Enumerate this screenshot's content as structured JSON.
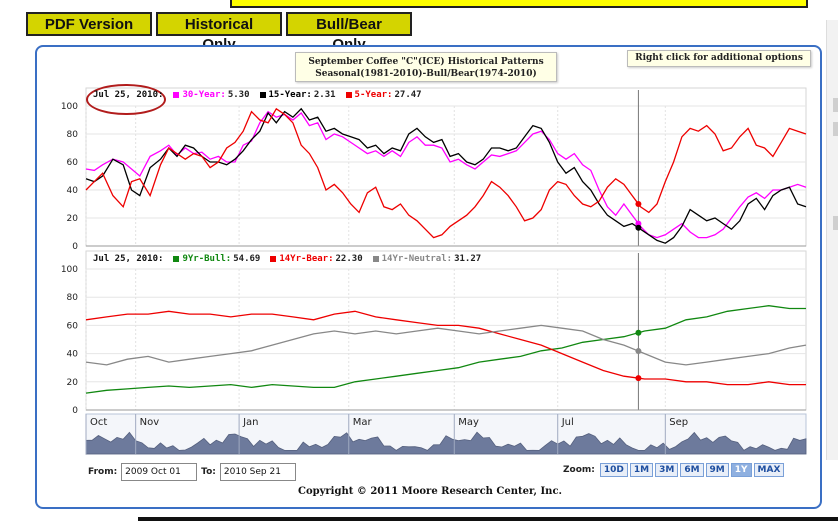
{
  "tabs": [
    "PDF Version",
    "Historical Only",
    "Bull/Bear Only"
  ],
  "title": {
    "line1": "September Coffee \"C\"(ICE) Historical Patterns",
    "line2": "Seasonal(1981-2010)-Bull/Bear(1974-2010)"
  },
  "right_click_note": "Right click for additional options",
  "colors": {
    "magenta": "#ff00ff",
    "black": "#000000",
    "red": "#ee0000",
    "green": "#118811",
    "gray": "#888888",
    "navigator_fill": "#6d7a9c",
    "border_blue": "#3a6fc4",
    "tab_yellow": "#d4d400"
  },
  "chart_data": [
    {
      "type": "line",
      "title": "September Coffee \"C\"(ICE) Historical Patterns",
      "cursor_date": "Jul 25, 2010:",
      "ylim": [
        0,
        100
      ],
      "yticks": [
        0,
        20,
        40,
        60,
        80,
        100
      ],
      "series": [
        {
          "name": "30-Year:",
          "value_label": "5.30",
          "color": "#ff00ff",
          "x": [
            0,
            4,
            8,
            13,
            18,
            22,
            26,
            31,
            36,
            40,
            44,
            48,
            52,
            56,
            60,
            64,
            68,
            72,
            76,
            80,
            84,
            88,
            92,
            96,
            100,
            104,
            108,
            112,
            116,
            120,
            124,
            128,
            132,
            136,
            140,
            144,
            148,
            152,
            156,
            160,
            164,
            168,
            172,
            176,
            180,
            184,
            188,
            192,
            196,
            200,
            204,
            208,
            212,
            216,
            220,
            224,
            228,
            232,
            236,
            240,
            244,
            248,
            252,
            256,
            260,
            264,
            268,
            272,
            276,
            280,
            284,
            288,
            292,
            296,
            300,
            304,
            308,
            312,
            316,
            320,
            324,
            328,
            332,
            336,
            340,
            344,
            348
          ],
          "y": [
            55,
            54,
            58,
            62,
            60,
            55,
            50,
            64,
            68,
            72,
            65,
            70,
            66,
            67,
            62,
            64,
            60,
            60,
            72,
            75,
            88,
            96,
            92,
            94,
            90,
            95,
            86,
            88,
            76,
            80,
            78,
            74,
            70,
            66,
            68,
            64,
            68,
            64,
            74,
            78,
            72,
            72,
            70,
            60,
            62,
            58,
            55,
            60,
            65,
            64,
            66,
            68,
            74,
            80,
            82,
            76,
            66,
            62,
            66,
            58,
            54,
            40,
            28,
            22,
            30,
            22,
            14,
            8,
            6,
            8,
            12,
            16,
            10,
            6,
            6,
            8,
            12,
            20,
            28,
            35,
            38,
            34,
            40,
            40,
            42,
            44,
            42
          ]
        },
        {
          "name": "15-Year:",
          "value_label": "2.31",
          "color": "#000000",
          "x": [
            0,
            4,
            8,
            13,
            18,
            22,
            26,
            31,
            36,
            40,
            44,
            48,
            52,
            56,
            60,
            64,
            68,
            72,
            76,
            80,
            84,
            88,
            92,
            96,
            100,
            104,
            108,
            112,
            116,
            120,
            124,
            128,
            132,
            136,
            140,
            144,
            148,
            152,
            156,
            160,
            164,
            168,
            172,
            176,
            180,
            184,
            188,
            192,
            196,
            200,
            204,
            208,
            212,
            216,
            220,
            224,
            228,
            232,
            236,
            240,
            244,
            248,
            252,
            256,
            260,
            264,
            268,
            272,
            276,
            280,
            284,
            288,
            292,
            296,
            300,
            304,
            308,
            312,
            316,
            320,
            324,
            328,
            332,
            336,
            340,
            344,
            348
          ],
          "y": [
            48,
            46,
            50,
            62,
            58,
            40,
            36,
            56,
            62,
            70,
            64,
            72,
            70,
            64,
            60,
            60,
            58,
            62,
            68,
            76,
            82,
            95,
            88,
            96,
            92,
            98,
            90,
            92,
            82,
            84,
            80,
            78,
            76,
            70,
            72,
            66,
            70,
            68,
            80,
            84,
            78,
            74,
            76,
            64,
            66,
            60,
            58,
            62,
            70,
            70,
            68,
            70,
            78,
            86,
            84,
            74,
            60,
            52,
            56,
            46,
            40,
            30,
            22,
            18,
            14,
            16,
            12,
            8,
            4,
            2,
            6,
            14,
            26,
            22,
            18,
            20,
            16,
            12,
            18,
            30,
            34,
            26,
            36,
            40,
            42,
            30,
            28
          ]
        },
        {
          "name": "5-Year:",
          "value_label": "27.47",
          "color": "#ee0000",
          "x": [
            0,
            4,
            8,
            13,
            18,
            22,
            26,
            31,
            36,
            40,
            44,
            48,
            52,
            56,
            60,
            64,
            68,
            72,
            76,
            80,
            84,
            88,
            92,
            96,
            100,
            104,
            108,
            112,
            116,
            120,
            124,
            128,
            132,
            136,
            140,
            144,
            148,
            152,
            156,
            160,
            164,
            168,
            172,
            176,
            180,
            184,
            188,
            192,
            196,
            200,
            204,
            208,
            212,
            216,
            220,
            224,
            228,
            232,
            236,
            240,
            244,
            248,
            252,
            256,
            260,
            264,
            268,
            272,
            276,
            280,
            284,
            288,
            292,
            296,
            300,
            304,
            308,
            312,
            316,
            320,
            324,
            328,
            332,
            336,
            340,
            344,
            348
          ],
          "y": [
            40,
            46,
            52,
            36,
            28,
            46,
            48,
            36,
            58,
            70,
            66,
            62,
            66,
            64,
            56,
            60,
            70,
            74,
            82,
            96,
            90,
            88,
            98,
            94,
            88,
            72,
            66,
            56,
            40,
            44,
            38,
            30,
            24,
            38,
            42,
            28,
            26,
            30,
            22,
            18,
            12,
            6,
            8,
            14,
            18,
            22,
            28,
            36,
            46,
            42,
            36,
            28,
            18,
            20,
            26,
            40,
            46,
            44,
            36,
            30,
            28,
            32,
            42,
            48,
            44,
            36,
            28,
            24,
            30,
            46,
            60,
            78,
            84,
            82,
            86,
            80,
            68,
            70,
            78,
            84,
            72,
            70,
            64,
            74,
            84,
            82,
            80
          ]
        }
      ],
      "x_markers": [
        "Jul 25"
      ]
    },
    {
      "type": "line",
      "cursor_date": "Jul 25, 2010:",
      "ylim": [
        0,
        100
      ],
      "yticks": [
        0,
        20,
        40,
        60,
        80,
        100
      ],
      "series": [
        {
          "name": "9Yr-Bull:",
          "value_label": "54.69",
          "color": "#118811",
          "x": [
            0,
            10,
            20,
            30,
            40,
            50,
            60,
            70,
            80,
            90,
            100,
            110,
            120,
            130,
            140,
            150,
            160,
            170,
            180,
            190,
            200,
            210,
            220,
            230,
            240,
            250,
            260,
            270,
            280,
            290,
            300,
            310,
            320,
            330,
            340,
            348
          ],
          "y": [
            12,
            14,
            15,
            16,
            17,
            16,
            17,
            18,
            16,
            18,
            17,
            16,
            16,
            20,
            22,
            24,
            26,
            28,
            30,
            34,
            36,
            38,
            42,
            44,
            48,
            50,
            52,
            56,
            58,
            64,
            66,
            70,
            72,
            74,
            72,
            72
          ]
        },
        {
          "name": "14Yr-Bear:",
          "value_label": "22.30",
          "color": "#ee0000",
          "x": [
            0,
            10,
            20,
            30,
            40,
            50,
            60,
            70,
            80,
            90,
            100,
            110,
            120,
            130,
            140,
            150,
            160,
            170,
            180,
            190,
            200,
            210,
            220,
            230,
            240,
            250,
            260,
            270,
            280,
            290,
            300,
            310,
            320,
            330,
            340,
            348
          ],
          "y": [
            64,
            66,
            68,
            68,
            70,
            68,
            68,
            66,
            68,
            68,
            66,
            64,
            68,
            70,
            66,
            64,
            62,
            60,
            60,
            58,
            54,
            50,
            46,
            40,
            34,
            28,
            24,
            22,
            22,
            20,
            20,
            18,
            18,
            20,
            18,
            18
          ]
        },
        {
          "name": "14Yr-Neutral:",
          "value_label": "31.27",
          "color": "#888888",
          "x": [
            0,
            10,
            20,
            30,
            40,
            50,
            60,
            70,
            80,
            90,
            100,
            110,
            120,
            130,
            140,
            150,
            160,
            170,
            180,
            190,
            200,
            210,
            220,
            230,
            240,
            250,
            260,
            270,
            280,
            290,
            300,
            310,
            320,
            330,
            340,
            348
          ],
          "y": [
            34,
            32,
            36,
            38,
            34,
            36,
            38,
            40,
            42,
            46,
            50,
            54,
            56,
            54,
            56,
            54,
            56,
            58,
            56,
            54,
            56,
            58,
            60,
            58,
            56,
            50,
            46,
            40,
            34,
            32,
            34,
            36,
            38,
            40,
            44,
            46
          ]
        }
      ]
    }
  ],
  "navigator": {
    "months": [
      "Oct",
      "Nov",
      "Jan",
      "Mar",
      "May",
      "Jul",
      "Sep"
    ],
    "month_positions": [
      0,
      24,
      74,
      127,
      178,
      228,
      280
    ]
  },
  "range": {
    "from_label": "From:",
    "from_value": "2009 Oct 01",
    "to_label": "To:",
    "to_value": "2010 Sep 21"
  },
  "zoom": {
    "label": "Zoom:",
    "options": [
      "10D",
      "1M",
      "3M",
      "6M",
      "9M",
      "1Y",
      "MAX"
    ],
    "selected": "1Y"
  },
  "copyright": "Copyright © 2011 Moore Research Center, Inc."
}
